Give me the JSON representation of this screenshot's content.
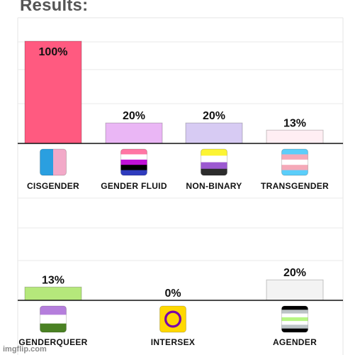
{
  "header": {
    "title": "Results:"
  },
  "watermark": "imgflip.com",
  "chart_data": [
    {
      "type": "bar",
      "categories": [
        "CISGENDER",
        "GENDER FLUID",
        "NON-BINARY",
        "TRANSGENDER"
      ],
      "values": [
        100,
        20,
        20,
        13
      ],
      "value_labels": [
        "100%",
        "20%",
        "20%",
        "13%"
      ],
      "ylim": [
        0,
        100
      ],
      "grid": true,
      "bar_colors": [
        "#ff5a80",
        "#eab6f5",
        "#d7cbf3",
        "#ffeef3"
      ],
      "icons": [
        "cisgender-flag-icon",
        "genderfluid-flag-icon",
        "nonbinary-flag-icon",
        "transgender-flag-icon"
      ]
    },
    {
      "type": "bar",
      "categories": [
        "GENDERQUEER",
        "INTERSEX",
        "AGENDER"
      ],
      "values": [
        13,
        0,
        20
      ],
      "value_labels": [
        "13%",
        "0%",
        "20%"
      ],
      "ylim": [
        0,
        100
      ],
      "grid": true,
      "bar_colors": [
        "#b5e87b",
        "#ffd400",
        "#f3f3f3"
      ],
      "icons": [
        "genderqueer-flag-icon",
        "intersex-flag-icon",
        "agender-flag-icon"
      ]
    }
  ]
}
